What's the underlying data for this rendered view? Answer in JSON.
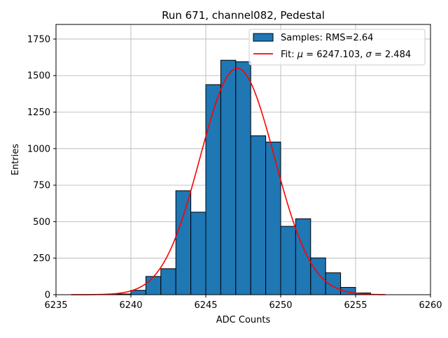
{
  "chart_data": {
    "type": "bar",
    "title": "Run 671, channel082, Pedestal",
    "xlabel": "ADC Counts",
    "ylabel": "Entries",
    "xlim": [
      6235,
      6260
    ],
    "ylim": [
      0,
      1850
    ],
    "xticks": [
      6235,
      6240,
      6245,
      6250,
      6255,
      6260
    ],
    "yticks": [
      0,
      250,
      500,
      750,
      1000,
      1250,
      1500,
      1750
    ],
    "grid": true,
    "legend_position": "top-right",
    "histogram": {
      "name": "Samples: RMS=2.64",
      "color": "#1f77b4",
      "edge_color": "#000000",
      "bin_edges": [
        6236,
        6237,
        6238,
        6239,
        6240,
        6241,
        6242,
        6243,
        6244,
        6245,
        6246,
        6247,
        6248,
        6249,
        6250,
        6251,
        6252,
        6253,
        6254,
        6255,
        6256,
        6257
      ],
      "counts": [
        0,
        0,
        0,
        5,
        30,
        125,
        178,
        712,
        565,
        1438,
        1605,
        1595,
        1088,
        1045,
        468,
        520,
        252,
        150,
        50,
        12,
        0
      ]
    },
    "fit": {
      "name": "Fit: μ = 6247.103, σ = 2.484",
      "name_parts": [
        "Fit: ",
        "μ",
        " = 6247.103, ",
        "σ",
        " = 2.484"
      ],
      "color": "#ff0000",
      "mu": 6247.103,
      "sigma": 2.484,
      "amplitude": 1550,
      "x_range": [
        6236,
        6257
      ]
    }
  }
}
